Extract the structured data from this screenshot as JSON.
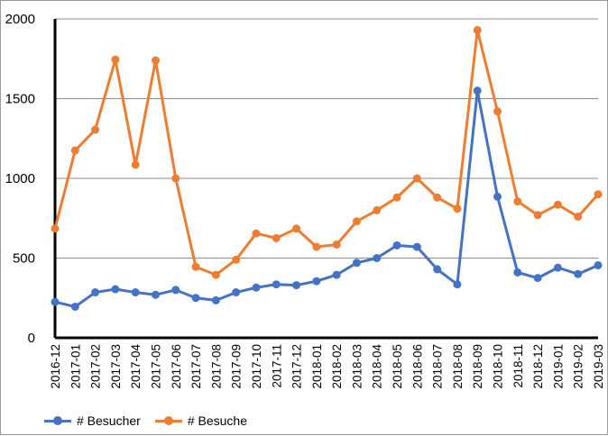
{
  "chart_data": {
    "type": "line",
    "categories": [
      "2016-12",
      "2017-01",
      "2017-02",
      "2017-03",
      "2017-04",
      "2017-05",
      "2017-06",
      "2017-07",
      "2017-08",
      "2017-09",
      "2017-10",
      "2017-11",
      "2017-12",
      "2018-01",
      "2018-02",
      "2018-03",
      "2018-04",
      "2018-05",
      "2018-06",
      "2018-07",
      "2018-08",
      "2018-09",
      "2018-10",
      "2018-11",
      "2018-12",
      "2019-01",
      "2019-02",
      "2019-03"
    ],
    "series": [
      {
        "name": "# Besucher",
        "color": "#4472c4",
        "values": [
          225,
          195,
          285,
          305,
          285,
          270,
          300,
          250,
          235,
          285,
          315,
          335,
          330,
          355,
          395,
          470,
          500,
          580,
          570,
          430,
          335,
          1550,
          885,
          410,
          375,
          440,
          400,
          455
        ]
      },
      {
        "name": "# Besuche",
        "color": "#ed7d31",
        "values": [
          685,
          1175,
          1305,
          1745,
          1085,
          1740,
          1000,
          445,
          395,
          490,
          655,
          625,
          685,
          570,
          585,
          730,
          800,
          880,
          1000,
          880,
          810,
          1930,
          1420,
          855,
          770,
          835,
          760,
          900
        ]
      }
    ],
    "ylim": [
      0,
      2000
    ],
    "yticks": [
      0,
      500,
      1000,
      1500,
      2000
    ],
    "grid": true,
    "legend_position": "bottom-left"
  }
}
